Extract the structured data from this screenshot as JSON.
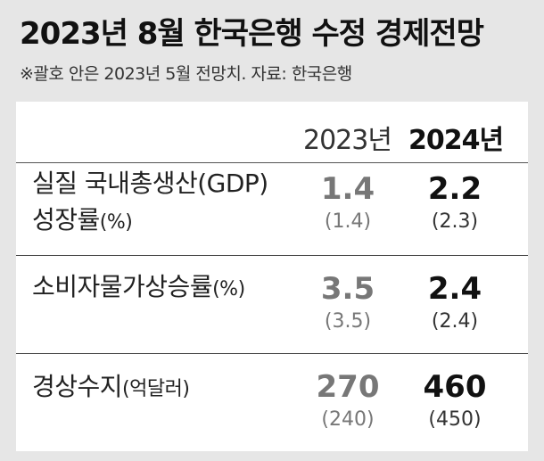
{
  "header": {
    "title": "2023년 8월 한국은행 수정 경제전망",
    "subtitle": "※괄호 안은 2023년 5월 전망치. 자료: 한국은행"
  },
  "chart_data": {
    "type": "table",
    "columns": [
      "2023년",
      "2024년"
    ],
    "rows": [
      {
        "label_line1": "실질 국내총생산(GDP)",
        "label_line2": "성장률",
        "unit": "(%)",
        "values": [
          "1.4",
          "2.2"
        ],
        "previous": [
          "(1.4)",
          "(2.3)"
        ]
      },
      {
        "label_line1": "소비자물가상승률",
        "label_line2": "",
        "unit": "(%)",
        "values": [
          "3.5",
          "2.4"
        ],
        "previous": [
          "(3.5)",
          "(2.4)"
        ]
      },
      {
        "label_line1": "경상수지",
        "label_line2": "",
        "unit": "(억달러)",
        "values": [
          "270",
          "460"
        ],
        "previous": [
          "(240)",
          "(450)"
        ]
      }
    ]
  }
}
